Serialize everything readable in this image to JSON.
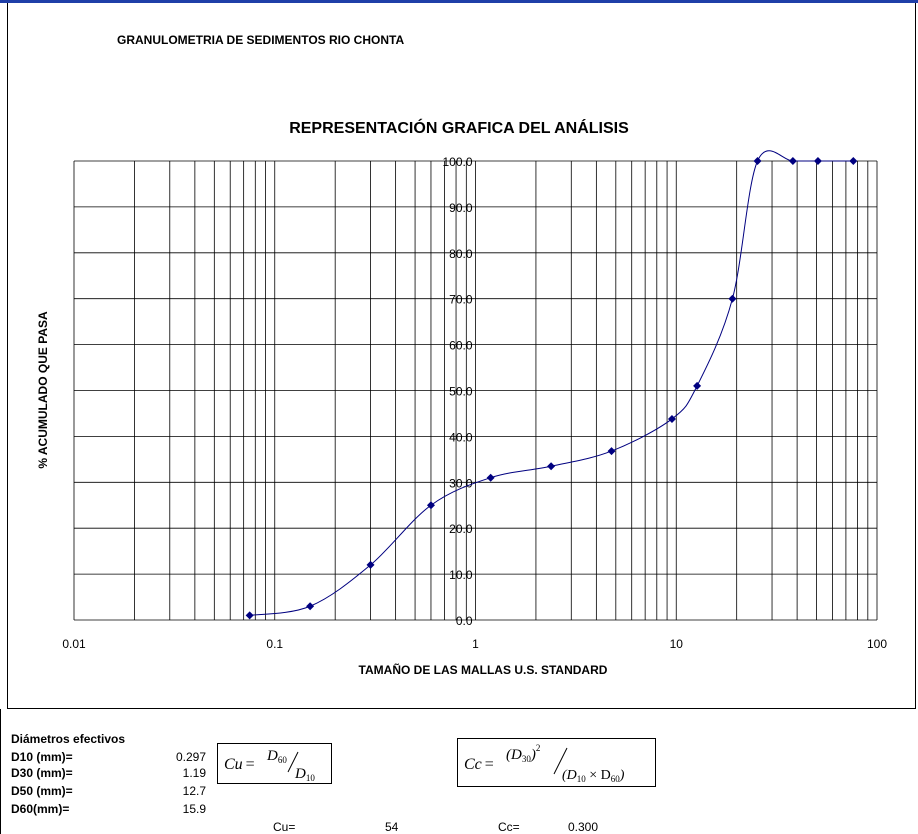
{
  "document": {
    "title": "GRANULOMETRIA DE SEDIMENTOS RIO CHONTA"
  },
  "chart_data": {
    "type": "line",
    "title": "REPRESENTACIÓN GRAFICA DEL ANÁLISIS",
    "xlabel": "TAMAÑO DE LAS MALLAS U.S. STANDARD",
    "ylabel": "% ACUMULADO QUE PASA",
    "xscale": "log",
    "xlim": [
      0.01,
      100
    ],
    "ylim": [
      0,
      100
    ],
    "xticks": [
      "0.01",
      "0.1",
      "1",
      "10",
      "100"
    ],
    "yticks": [
      "0.0",
      "10.0",
      "20.0",
      "30.0",
      "40.0",
      "50.0",
      "60.0",
      "70.0",
      "80.0",
      "90.0",
      "100.0"
    ],
    "grid": true,
    "series": [
      {
        "x": [
          0.075,
          0.15,
          0.3,
          0.6,
          1.19,
          2.38,
          4.76,
          9.52,
          12.7,
          19.05,
          25.4,
          38.1,
          50.8,
          76.2
        ],
        "y": [
          1.0,
          3.0,
          12.0,
          25.0,
          31.0,
          33.5,
          36.8,
          43.8,
          51.0,
          70.0,
          100.0,
          100.0,
          100.0,
          100.0
        ],
        "color": "#000080",
        "marker": "diamond"
      }
    ]
  },
  "diametros": {
    "title": "Diámetros efectivos",
    "rows": [
      {
        "label": "D10 (mm)=",
        "value": "0.297"
      },
      {
        "label": "D30 (mm)=",
        "value": "1.19"
      },
      {
        "label": "D50 (mm)=",
        "value": "12.7"
      },
      {
        "label": "D60(mm)=",
        "value": "15.9"
      }
    ]
  },
  "coefficients": {
    "cu_label": "Cu=",
    "cu_value": "54",
    "cc_label": "Cc=",
    "cc_value": "0.300"
  },
  "formulas": {
    "cu": {
      "lhs": "Cu",
      "num": "D",
      "num_sub": "60",
      "den": "D",
      "den_sub": "10"
    },
    "cc": {
      "lhs": "Cc",
      "num": "(D",
      "num_sub": "30",
      "num_tail": ")",
      "num_sup": "2",
      "den": "(D",
      "den_sub1": "10",
      "den_mid": " × D",
      "den_sub2": "60",
      "den_tail": ")"
    }
  }
}
